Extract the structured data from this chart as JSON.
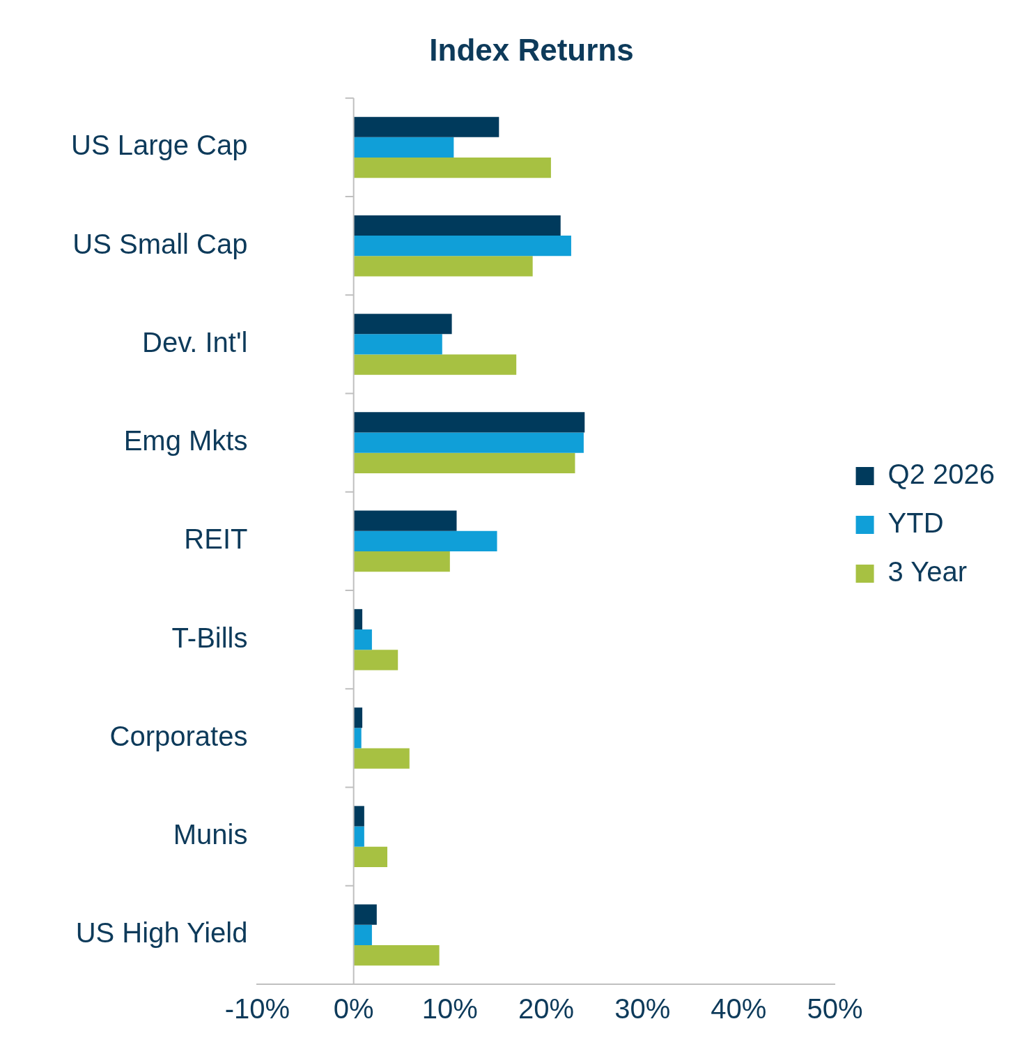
{
  "chart_data": {
    "type": "bar",
    "orientation": "horizontal",
    "title": "Index Returns",
    "categories": [
      "US Large Cap",
      "US Small Cap",
      "Dev. Int'l",
      "Emg Mkts",
      "REIT",
      "T-Bills",
      "Corporates",
      "Munis",
      "US High Yield"
    ],
    "series": [
      {
        "name": "Q2 2026",
        "color": "#003a5c",
        "values": [
          15.1,
          21.5,
          10.2,
          24.0,
          10.7,
          0.9,
          0.9,
          1.1,
          2.4
        ]
      },
      {
        "name": "YTD",
        "color": "#109fd8",
        "values": [
          10.4,
          22.6,
          9.2,
          23.9,
          14.9,
          1.9,
          0.8,
          1.1,
          1.9
        ]
      },
      {
        "name": "3 Year",
        "color": "#a7c142",
        "values": [
          20.5,
          18.6,
          16.9,
          23.0,
          10.0,
          4.6,
          5.8,
          3.5,
          8.9
        ]
      }
    ],
    "xlim": [
      -10,
      50
    ],
    "xticks": [
      {
        "value": -10,
        "label": "-10%"
      },
      {
        "value": 0,
        "label": "0%"
      },
      {
        "value": 10,
        "label": "10%"
      },
      {
        "value": 20,
        "label": "20%"
      },
      {
        "value": 30,
        "label": "30%"
      },
      {
        "value": 40,
        "label": "40%"
      },
      {
        "value": 50,
        "label": "50%"
      }
    ],
    "ref_lines": [
      {
        "axis": "x",
        "value": 0,
        "color": "#bfbfbf"
      }
    ],
    "grid": false,
    "legend": "right"
  }
}
